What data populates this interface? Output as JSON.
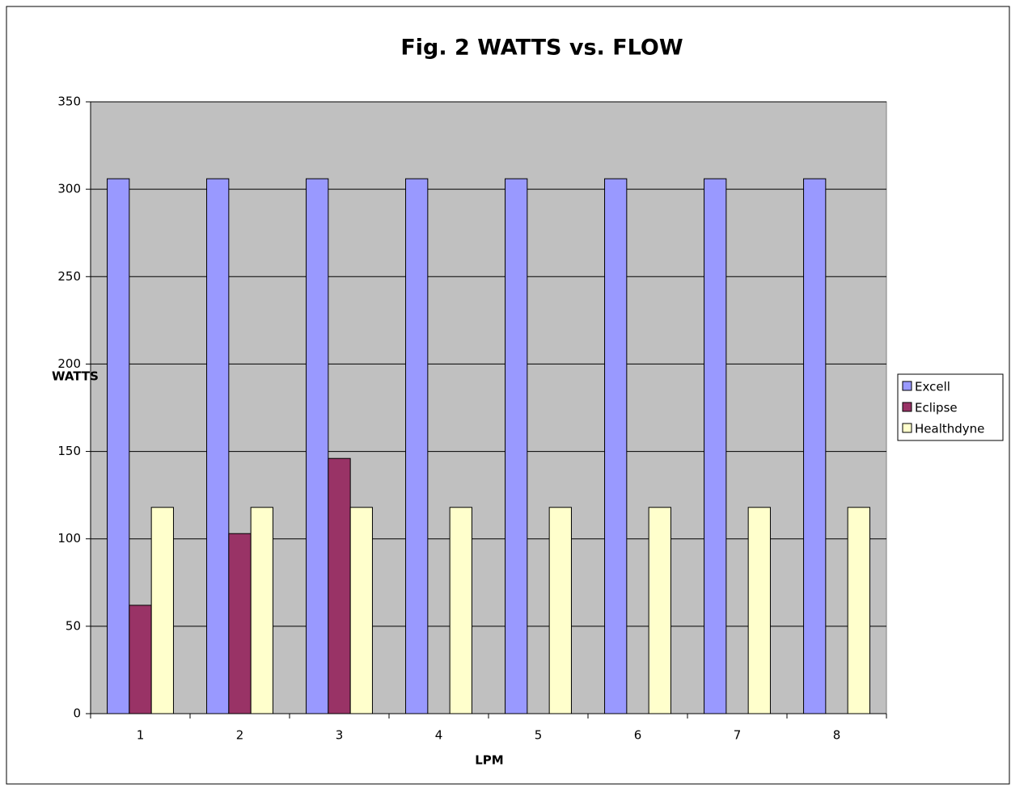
{
  "chart_data": {
    "type": "bar",
    "title": "Fig. 2 WATTS vs.  FLOW",
    "x_label": "LPM",
    "y_label": "WATTS",
    "categories": [
      "1",
      "2",
      "3",
      "4",
      "5",
      "6",
      "7",
      "8"
    ],
    "series": [
      {
        "name": "Excell",
        "color": "#9999ff",
        "values": [
          306,
          306,
          306,
          306,
          306,
          306,
          306,
          306
        ]
      },
      {
        "name": "Eclipse",
        "color": "#993366",
        "values": [
          62,
          103,
          146,
          null,
          null,
          null,
          null,
          null
        ]
      },
      {
        "name": "Healthdyne",
        "color": "#ffffcc",
        "values": [
          118,
          118,
          118,
          118,
          118,
          118,
          118,
          118
        ]
      }
    ],
    "ylim": [
      0,
      350
    ],
    "yticks": [
      0,
      50,
      100,
      150,
      200,
      250,
      300,
      350
    ],
    "grid": true,
    "legend": "right"
  }
}
